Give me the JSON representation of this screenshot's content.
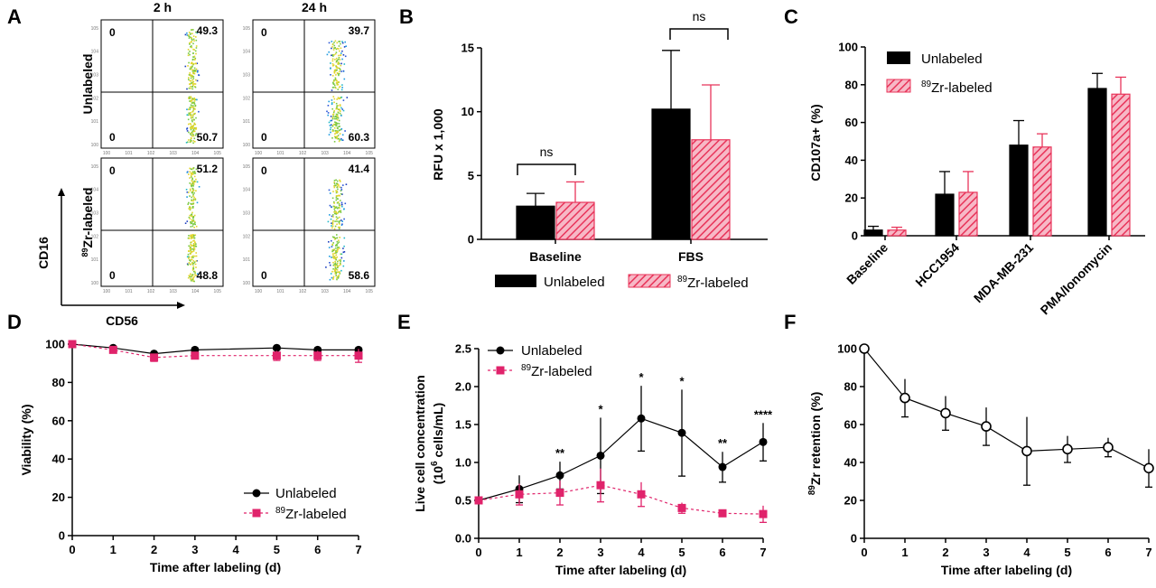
{
  "colors": {
    "unlabeled": "#000000",
    "labeled": "#e8345a",
    "labeled_marker": "#e0236b",
    "hatch": "#e8345a"
  },
  "panels": {
    "a": {
      "letter": "A"
    },
    "b": {
      "letter": "B"
    },
    "c": {
      "letter": "C"
    },
    "d": {
      "letter": "D"
    },
    "e": {
      "letter": "E"
    },
    "f": {
      "letter": "F"
    }
  },
  "chart_data": [
    {
      "panel": "A",
      "type": "scatter",
      "description_free": true,
      "columns": [
        "2 h",
        "24 h"
      ],
      "rows": [
        "Unlabeled",
        "89Zr-labeled"
      ],
      "xlabel": "CD56",
      "ylabel": "CD16",
      "quadrants": [
        {
          "row": 0,
          "col": 0,
          "ul": "0",
          "ur": "49.3",
          "ll": "0",
          "lr": "50.7"
        },
        {
          "row": 0,
          "col": 1,
          "ul": "0",
          "ur": "39.7",
          "ll": "0",
          "lr": "60.3"
        },
        {
          "row": 1,
          "col": 0,
          "ul": "0",
          "ur": "51.2",
          "ll": "0",
          "lr": "48.8"
        },
        {
          "row": 1,
          "col": 1,
          "ul": "0",
          "ur": "41.4",
          "ll": "0",
          "lr": "58.6"
        }
      ]
    },
    {
      "panel": "B",
      "type": "bar",
      "categories": [
        "Baseline",
        "FBS"
      ],
      "series": [
        {
          "name": "Unlabeled",
          "values": [
            2.6,
            10.2
          ],
          "errors": [
            1.0,
            4.6
          ]
        },
        {
          "name": "89Zr-labeled",
          "values": [
            2.9,
            7.8
          ],
          "errors": [
            1.6,
            4.3
          ]
        }
      ],
      "ylabel": "RFU x 1,000",
      "ylim": [
        0,
        15
      ],
      "yticks": [
        0,
        5,
        10,
        15
      ],
      "annotations": [
        "ns",
        "ns"
      ],
      "legend": "bottom"
    },
    {
      "panel": "C",
      "type": "bar",
      "categories": [
        "Baseline",
        "HCC1954",
        "MDA-MB-231",
        "PMA/Ionomycin"
      ],
      "series": [
        {
          "name": "Unlabeled",
          "values": [
            3,
            22,
            48,
            78
          ],
          "errors": [
            2,
            12,
            13,
            8
          ]
        },
        {
          "name": "89Zr-labeled",
          "values": [
            3,
            23,
            47,
            75
          ],
          "errors": [
            1.5,
            11,
            7,
            9
          ]
        }
      ],
      "ylabel": "CD107a+ (%)",
      "ylim": [
        0,
        100
      ],
      "yticks": [
        0,
        20,
        40,
        60,
        80,
        100
      ],
      "legend": "top-left"
    },
    {
      "panel": "D",
      "type": "line",
      "x": [
        0,
        1,
        2,
        3,
        5,
        6,
        7
      ],
      "series": [
        {
          "name": "Unlabeled",
          "values": [
            100,
            98,
            95,
            97,
            98,
            97,
            97
          ],
          "errors": [
            1,
            1,
            1.5,
            1,
            1,
            1,
            1
          ]
        },
        {
          "name": "89Zr-labeled",
          "values": [
            100,
            97,
            93,
            94,
            94,
            94,
            94
          ],
          "errors": [
            1,
            1.5,
            2,
            1.5,
            2.5,
            2.5,
            3.5
          ]
        }
      ],
      "xlabel": "Time after labeling (d)",
      "ylabel": "Viability (%)",
      "xlim": [
        0,
        7
      ],
      "ylim": [
        0,
        100
      ],
      "xticks": [
        0,
        1,
        2,
        3,
        4,
        5,
        6,
        7
      ],
      "yticks": [
        0,
        20,
        40,
        60,
        80,
        100
      ],
      "legend": "bottom-right"
    },
    {
      "panel": "E",
      "type": "line",
      "x": [
        0,
        1,
        2,
        3,
        4,
        5,
        6,
        7
      ],
      "series": [
        {
          "name": "Unlabeled",
          "values": [
            0.5,
            0.65,
            0.83,
            1.09,
            1.58,
            1.39,
            0.94,
            1.27
          ],
          "errors": [
            0.02,
            0.18,
            0.18,
            0.5,
            0.43,
            0.57,
            0.2,
            0.25
          ]
        },
        {
          "name": "89Zr-labeled",
          "values": [
            0.5,
            0.58,
            0.6,
            0.7,
            0.58,
            0.4,
            0.33,
            0.32
          ],
          "errors": [
            0.02,
            0.14,
            0.16,
            0.22,
            0.16,
            0.07,
            0.03,
            0.11
          ]
        }
      ],
      "significance": [
        "",
        "",
        "**",
        "*",
        "*",
        "*",
        "**",
        "****"
      ],
      "xlabel": "Time after labeling (d)",
      "ylabel_line1": "Live cell concentration",
      "ylabel_line2_pre": "(10",
      "ylabel_line2_sup": "6",
      "ylabel_line2_post": " cells/mL)",
      "xlim": [
        0,
        7
      ],
      "ylim": [
        0,
        2.5
      ],
      "xticks": [
        0,
        1,
        2,
        3,
        4,
        5,
        6,
        7
      ],
      "yticks": [
        "0.0",
        "0.5",
        "1.0",
        "1.5",
        "2.0",
        "2.5"
      ],
      "legend": "top-left"
    },
    {
      "panel": "F",
      "type": "line",
      "x": [
        0,
        1,
        2,
        3,
        4,
        5,
        6,
        7
      ],
      "series": [
        {
          "name": "89Zr retention",
          "values": [
            100,
            74,
            66,
            59,
            46,
            47,
            48,
            37
          ],
          "errors": [
            0,
            10,
            9,
            10,
            18,
            7,
            5,
            10
          ]
        }
      ],
      "xlabel": "Time after labeling (d)",
      "ylabel_sup": "89",
      "ylabel_post": "Zr retention (%)",
      "xlim": [
        0,
        7
      ],
      "ylim": [
        0,
        100
      ],
      "xticks": [
        0,
        1,
        2,
        3,
        4,
        5,
        6,
        7
      ],
      "yticks": [
        0,
        20,
        40,
        60,
        80,
        100
      ]
    }
  ],
  "legend_labels": {
    "unlabeled": "Unlabeled",
    "labeled_sup": "89",
    "labeled_post": "Zr-labeled"
  }
}
